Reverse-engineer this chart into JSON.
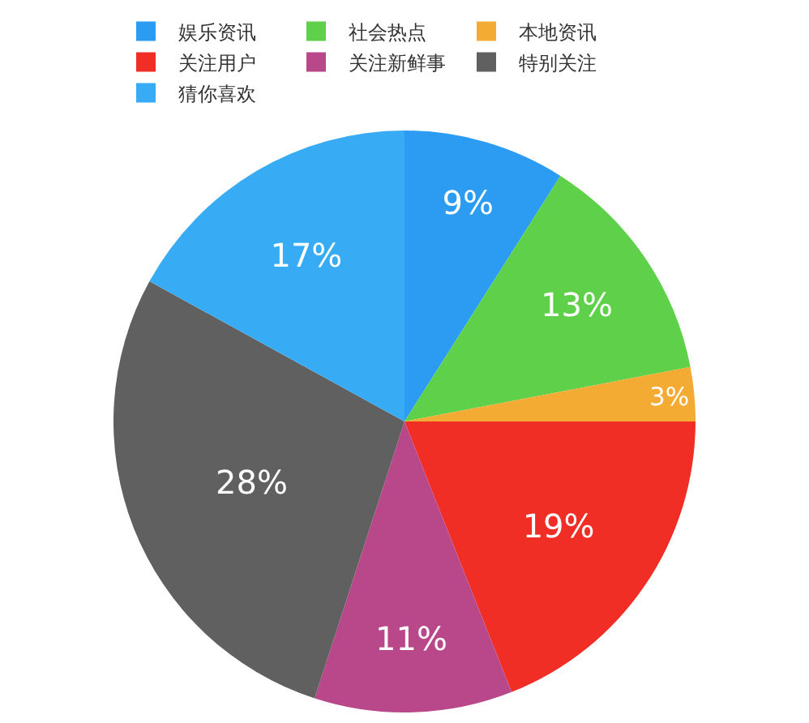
{
  "chart_data": {
    "type": "pie",
    "categories": [
      "娱乐资讯",
      "社会热点",
      "本地资讯",
      "关注用户",
      "关注新鲜事",
      "特别关注",
      "猜你喜欢"
    ],
    "values": [
      9,
      13,
      3,
      19,
      11,
      28,
      17
    ],
    "colors": [
      "#2b9cf2",
      "#5fd04a",
      "#f3ab33",
      "#f12e25",
      "#b9488b",
      "#606060",
      "#37abf4"
    ],
    "value_labels": [
      "9%",
      "13%",
      "3%",
      "19%",
      "11%",
      "28%",
      "17%"
    ],
    "legend": "top left"
  }
}
